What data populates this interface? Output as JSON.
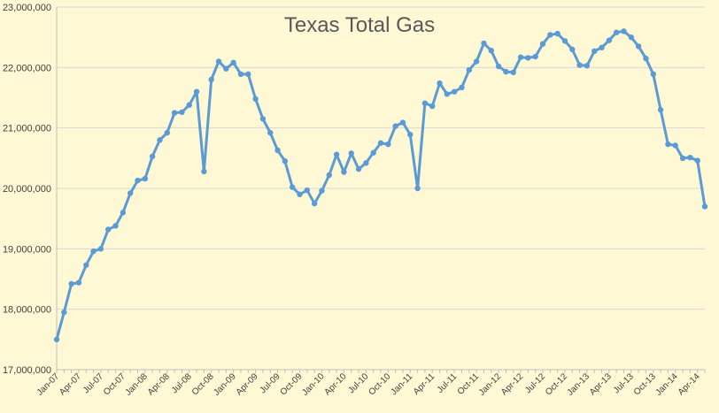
{
  "chart_data": {
    "type": "line",
    "title": "Texas Total Gas",
    "xlabel": "",
    "ylabel": "",
    "ylim": [
      17000000,
      23000000
    ],
    "y_ticks": [
      17000000,
      18000000,
      19000000,
      20000000,
      21000000,
      22000000,
      23000000
    ],
    "y_tick_labels": [
      "17,000,000",
      "18,000,000",
      "19,000,000",
      "20,000,000",
      "21,000,000",
      "22,000,000",
      "23,000,000"
    ],
    "x_tick_labels": [
      "Jan-07",
      "Apr-07",
      "Jul-07",
      "Oct-07",
      "Jan-08",
      "Apr-08",
      "Jul-08",
      "Oct-08",
      "Jan-09",
      "Apr-09",
      "Jul-09",
      "Oct-09",
      "Jan-10",
      "Apr-10",
      "Jul-10",
      "Oct-10",
      "Jan-11",
      "Apr-11",
      "Jul-11",
      "Oct-11",
      "Jan-12",
      "Apr-12",
      "Jul-12",
      "Oct-12",
      "Jan-13",
      "Apr-13",
      "Jul-13",
      "Oct-13",
      "Jan-14",
      "Apr-14"
    ],
    "grid": true,
    "legend": "none",
    "line_color": "#5b9bd5",
    "series": [
      {
        "values": [
          17500000,
          17950000,
          18420000,
          18440000,
          18730000,
          18960000,
          19000000,
          19320000,
          19380000,
          19600000,
          19920000,
          20130000,
          20160000,
          20530000,
          20800000,
          20920000,
          21250000,
          21260000,
          21380000,
          21600000,
          20280000,
          21800000,
          22100000,
          21980000,
          22080000,
          21890000,
          21890000,
          21480000,
          21150000,
          20920000,
          20630000,
          20450000,
          20020000,
          19900000,
          19970000,
          19750000,
          19960000,
          20220000,
          20560000,
          20270000,
          20580000,
          20320000,
          20420000,
          20590000,
          20750000,
          20730000,
          21030000,
          21090000,
          20890000,
          20000000,
          21410000,
          21360000,
          21740000,
          21560000,
          21600000,
          21670000,
          21960000,
          22100000,
          22400000,
          22280000,
          22020000,
          21930000,
          21920000,
          22170000,
          22160000,
          22180000,
          22390000,
          22540000,
          22560000,
          22440000,
          22300000,
          22040000,
          22030000,
          22270000,
          22330000,
          22450000,
          22580000,
          22600000,
          22500000,
          22350000,
          22150000,
          21890000,
          21300000,
          20730000,
          20710000,
          20500000,
          20510000,
          20460000,
          19700000
        ]
      }
    ]
  }
}
